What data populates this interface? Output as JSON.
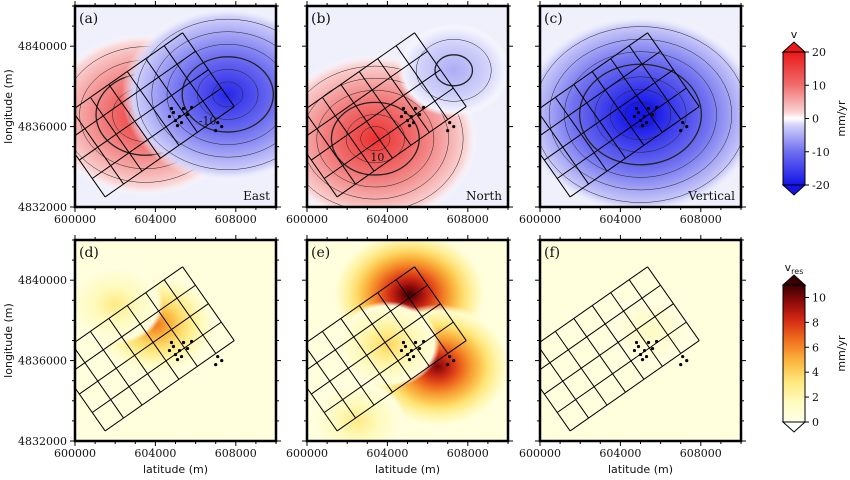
{
  "chart_data": [
    {
      "type": "heatmap",
      "panel_label": "(a)",
      "component": "East",
      "quantity": "v",
      "xlim": [
        600000,
        610000
      ],
      "ylim": [
        4832000,
        4842000
      ],
      "x_ticks": [
        "600000",
        "604000",
        "608000"
      ],
      "y_ticks": [
        "4832000",
        "4836000",
        "4840000"
      ],
      "ylabel": "longitude (m)",
      "xlabel": "",
      "peaks": [
        {
          "x": 603500,
          "y": 4836600,
          "value": 16
        },
        {
          "x": 607600,
          "y": 4837600,
          "value": -18
        }
      ],
      "contour_labels": [
        {
          "x": 606600,
          "y": 4836100,
          "text": "-10"
        }
      ]
    },
    {
      "type": "heatmap",
      "panel_label": "(b)",
      "component": "North",
      "quantity": "v",
      "xlim": [
        600000,
        610000
      ],
      "ylim": [
        4832000,
        4842000
      ],
      "x_ticks": [
        "600000",
        "604000",
        "608000"
      ],
      "y_ticks": [
        "4832000",
        "4836000",
        "4840000"
      ],
      "ylabel": "",
      "xlabel": "",
      "peaks": [
        {
          "x": 603400,
          "y": 4835400,
          "value": 17
        },
        {
          "x": 607300,
          "y": 4838800,
          "value": -5
        }
      ],
      "contour_labels": [
        {
          "x": 603500,
          "y": 4834300,
          "text": "10"
        }
      ]
    },
    {
      "type": "heatmap",
      "panel_label": "(c)",
      "component": "Vertical",
      "quantity": "v",
      "xlim": [
        600000,
        610000
      ],
      "ylim": [
        4832000,
        4842000
      ],
      "x_ticks": [
        "600000",
        "604000",
        "608000"
      ],
      "y_ticks": [
        "4832000",
        "4836000",
        "4840000"
      ],
      "ylabel": "",
      "xlabel": "",
      "peaks": [
        {
          "x": 605000,
          "y": 4836600,
          "value": -22
        }
      ],
      "contour_labels": []
    },
    {
      "type": "heatmap",
      "panel_label": "(d)",
      "component": "",
      "quantity": "v_res",
      "xlim": [
        600000,
        610000
      ],
      "ylim": [
        4832000,
        4842000
      ],
      "x_ticks": [
        "600000",
        "604000",
        "608000"
      ],
      "y_ticks": [
        "4832000",
        "4836000",
        "4840000"
      ],
      "ylabel": "longitude (m)",
      "xlabel": "latitude (m)",
      "peaks": [
        {
          "x": 604000,
          "y": 4837800,
          "value": 6.5
        },
        {
          "x": 602000,
          "y": 4838800,
          "value": 3
        }
      ],
      "contour_labels": []
    },
    {
      "type": "heatmap",
      "panel_label": "(e)",
      "component": "",
      "quantity": "v_res",
      "xlim": [
        600000,
        610000
      ],
      "ylim": [
        4832000,
        4842000
      ],
      "x_ticks": [
        "600000",
        "604000",
        "608000"
      ],
      "y_ticks": [
        "4832000",
        "4836000",
        "4840000"
      ],
      "ylabel": "",
      "xlabel": "latitude (m)",
      "peaks": [
        {
          "x": 605100,
          "y": 4839300,
          "value": 11
        },
        {
          "x": 606500,
          "y": 4835700,
          "value": 10
        },
        {
          "x": 604000,
          "y": 4836800,
          "value": 4
        },
        {
          "x": 602500,
          "y": 4833000,
          "value": 3
        }
      ],
      "contour_labels": []
    },
    {
      "type": "heatmap",
      "panel_label": "(f)",
      "component": "",
      "quantity": "v_res",
      "xlim": [
        600000,
        610000
      ],
      "ylim": [
        4832000,
        4842000
      ],
      "x_ticks": [
        "600000",
        "604000",
        "608000"
      ],
      "y_ticks": [
        "4832000",
        "4836000",
        "4840000"
      ],
      "ylabel": "",
      "xlabel": "latitude (m)",
      "peaks": [
        {
          "x": 605500,
          "y": 4837500,
          "value": 1.5
        }
      ],
      "contour_labels": []
    }
  ],
  "colorbars": [
    {
      "title": "v",
      "unit": "mm/yr",
      "ticks": [
        "20",
        "10",
        "0",
        "-10",
        "-20"
      ],
      "range": [
        -20,
        20
      ],
      "colormap": "blue-white-red"
    },
    {
      "title": "v",
      "title_sub": "res",
      "unit": "mm/yr",
      "ticks": [
        "10",
        "8",
        "6",
        "4",
        "2",
        "0"
      ],
      "range": [
        0,
        11
      ],
      "colormap": "white-yellow-red-black"
    }
  ],
  "colors": {
    "neg_max": "#1515e8",
    "pos_max": "#ea1818",
    "res_max": "#3a0000",
    "background": "#ffffff"
  }
}
